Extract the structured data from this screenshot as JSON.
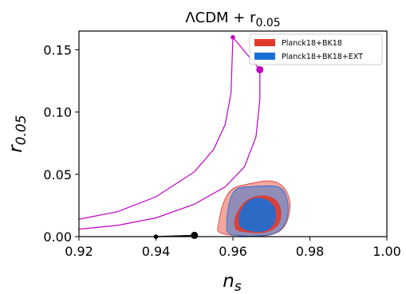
{
  "chart_data": {
    "type": "contour",
    "title": "ΛCDM + r",
    "title_sub": "0.05",
    "xlabel": "n",
    "xlabel_sub": "s",
    "ylabel": "r",
    "ylabel_sub": "0.05",
    "xlim": [
      0.92,
      1.0
    ],
    "ylim": [
      0.0,
      0.165
    ],
    "xticks": [
      "0.92",
      "0.94",
      "0.96",
      "0.98",
      "1.00"
    ],
    "yticks": [
      "0.00",
      "0.05",
      "0.10",
      "0.15"
    ],
    "xtick_values": [
      0.92,
      0.94,
      0.96,
      0.98,
      1.0
    ],
    "ytick_values": [
      0.0,
      0.05,
      0.1,
      0.15
    ],
    "legend_position": "top-right",
    "grid": false,
    "series": [
      {
        "name": "Planck18+BK18",
        "color": "#e0392c",
        "contour_68": [
          [
            0.9615,
            0.004
          ],
          [
            0.9685,
            0.002
          ],
          [
            0.9722,
            0.009
          ],
          [
            0.9728,
            0.021
          ],
          [
            0.9712,
            0.031
          ],
          [
            0.9672,
            0.034
          ],
          [
            0.9628,
            0.029
          ],
          [
            0.9602,
            0.015
          ],
          [
            0.9605,
            0.006
          ]
        ],
        "contour_95": [
          [
            0.9558,
            0.002
          ],
          [
            0.9645,
            0.0
          ],
          [
            0.9705,
            0.001
          ],
          [
            0.9738,
            0.008
          ],
          [
            0.9752,
            0.025
          ],
          [
            0.9738,
            0.039
          ],
          [
            0.9702,
            0.046
          ],
          [
            0.9635,
            0.042
          ],
          [
            0.9595,
            0.039
          ],
          [
            0.9572,
            0.026
          ],
          [
            0.9562,
            0.01
          ]
        ]
      },
      {
        "name": "Planck18+BK18+EXT",
        "color": "#1a6fd6",
        "contour_68": [
          [
            0.9625,
            0.005
          ],
          [
            0.9685,
            0.003
          ],
          [
            0.9712,
            0.011
          ],
          [
            0.9712,
            0.023
          ],
          [
            0.9692,
            0.03
          ],
          [
            0.9652,
            0.032
          ],
          [
            0.9622,
            0.024
          ],
          [
            0.9612,
            0.012
          ]
        ],
        "contour_95": [
          [
            0.9585,
            0.001
          ],
          [
            0.9655,
            0.0
          ],
          [
            0.9715,
            0.002
          ],
          [
            0.9742,
            0.012
          ],
          [
            0.9745,
            0.028
          ],
          [
            0.9728,
            0.04
          ],
          [
            0.969,
            0.041
          ],
          [
            0.964,
            0.04
          ],
          [
            0.9605,
            0.039
          ],
          [
            0.9588,
            0.026
          ],
          [
            0.9583,
            0.01
          ]
        ]
      },
      {
        "color": "#c000c0",
        "line_inner": [
          [
            0.92,
            0.014
          ],
          [
            0.93,
            0.02
          ],
          [
            0.94,
            0.032
          ],
          [
            0.95,
            0.052
          ],
          [
            0.955,
            0.07
          ],
          [
            0.958,
            0.09
          ],
          [
            0.9595,
            0.115
          ],
          [
            0.96,
            0.16
          ]
        ],
        "line_outer": [
          [
            0.92,
            0.006
          ],
          [
            0.93,
            0.009
          ],
          [
            0.94,
            0.015
          ],
          [
            0.95,
            0.026
          ],
          [
            0.958,
            0.04
          ],
          [
            0.963,
            0.056
          ],
          [
            0.966,
            0.08
          ],
          [
            0.967,
            0.11
          ],
          [
            0.967,
            0.134
          ]
        ],
        "connector": [
          [
            0.96,
            0.16
          ],
          [
            0.967,
            0.134
          ]
        ],
        "points": [
          {
            "x": 0.96,
            "y": 0.16,
            "size": "small"
          },
          {
            "x": 0.967,
            "y": 0.134,
            "size": "large"
          }
        ]
      },
      {
        "color": "#000000",
        "line": [
          [
            0.94,
            0.0
          ],
          [
            0.95,
            0.001
          ]
        ],
        "points": [
          {
            "x": 0.94,
            "y": 0.0,
            "size": "small"
          },
          {
            "x": 0.95,
            "y": 0.001,
            "size": "large"
          }
        ]
      }
    ]
  }
}
